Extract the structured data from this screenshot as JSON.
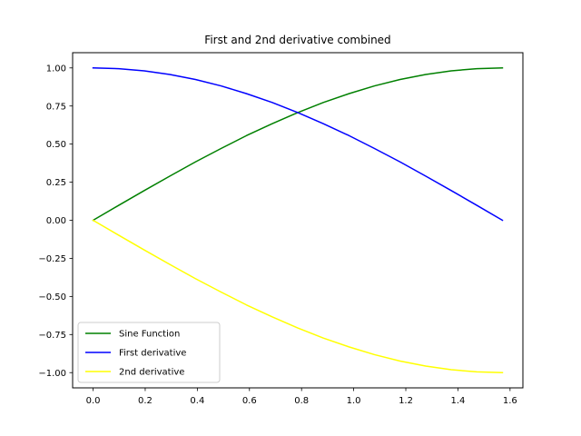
{
  "chart_data": {
    "type": "line",
    "title": "First and 2nd derivative combined",
    "xlabel": "",
    "ylabel": "",
    "xlim": [
      -0.0785,
      1.6493
    ],
    "ylim": [
      -1.1,
      1.1
    ],
    "x_ticks": [
      0.0,
      0.2,
      0.4,
      0.6,
      0.8,
      1.0,
      1.2,
      1.4,
      1.6
    ],
    "x_tick_labels": [
      "0.0",
      "0.2",
      "0.4",
      "0.6",
      "0.8",
      "1.0",
      "1.2",
      "1.4",
      "1.6"
    ],
    "y_ticks": [
      1.0,
      0.75,
      0.5,
      0.25,
      0.0,
      -0.25,
      -0.5,
      -0.75,
      -1.0
    ],
    "y_tick_labels": [
      "1.00",
      "0.75",
      "0.50",
      "0.25",
      "0.00",
      "−0.25",
      "−0.50",
      "−0.75",
      "−1.00"
    ],
    "grid": false,
    "legend_position": "lower-left",
    "x": [
      0.0,
      0.0982,
      0.1963,
      0.2945,
      0.3927,
      0.4909,
      0.589,
      0.6872,
      0.7854,
      0.8836,
      0.9817,
      1.0799,
      1.1781,
      1.2763,
      1.3744,
      1.4726,
      1.5708
    ],
    "series": [
      {
        "name": "Sine Function",
        "color": "#008000",
        "values": [
          0.0,
          0.098,
          0.195,
          0.29,
          0.383,
          0.471,
          0.556,
          0.634,
          0.707,
          0.773,
          0.831,
          0.882,
          0.924,
          0.957,
          0.981,
          0.995,
          1.0
        ]
      },
      {
        "name": "First derivative",
        "color": "#0000ff",
        "values": [
          1.0,
          0.995,
          0.981,
          0.957,
          0.924,
          0.882,
          0.831,
          0.773,
          0.707,
          0.634,
          0.556,
          0.471,
          0.383,
          0.29,
          0.195,
          0.098,
          0.0
        ]
      },
      {
        "name": "2nd derivative",
        "color": "#ffff00",
        "values": [
          0.0,
          -0.098,
          -0.195,
          -0.29,
          -0.383,
          -0.471,
          -0.556,
          -0.634,
          -0.707,
          -0.773,
          -0.831,
          -0.882,
          -0.924,
          -0.957,
          -0.981,
          -0.995,
          -1.0
        ]
      }
    ]
  }
}
